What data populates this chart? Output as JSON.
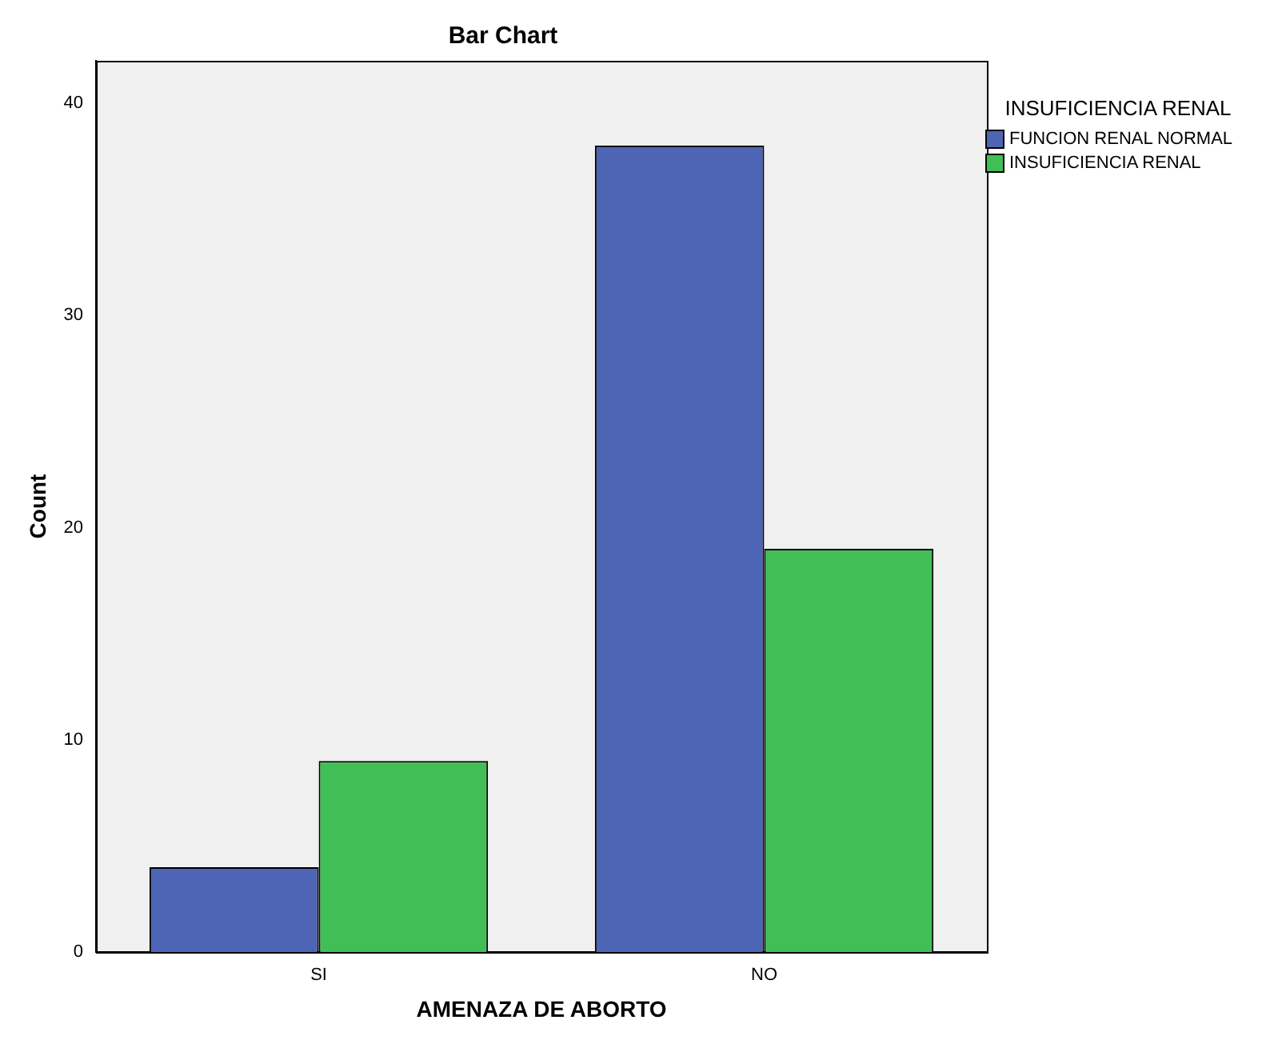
{
  "chart_data": {
    "type": "bar",
    "title": "Bar Chart",
    "xlabel": "AMENAZA DE ABORTO",
    "ylabel": "Count",
    "legend_title": "INSUFICIENCIA RENAL",
    "categories": [
      "SI",
      "NO"
    ],
    "series": [
      {
        "name": "FUNCION RENAL NORMAL",
        "color": "#4e65b5",
        "values": [
          4,
          38
        ]
      },
      {
        "name": "INSUFICIENCIA RENAL",
        "color": "#41bf56",
        "values": [
          9,
          19
        ]
      }
    ],
    "ylim": [
      0,
      42
    ],
    "yticks": [
      0,
      10,
      20,
      30,
      40
    ],
    "grid": false,
    "legend": "right"
  }
}
